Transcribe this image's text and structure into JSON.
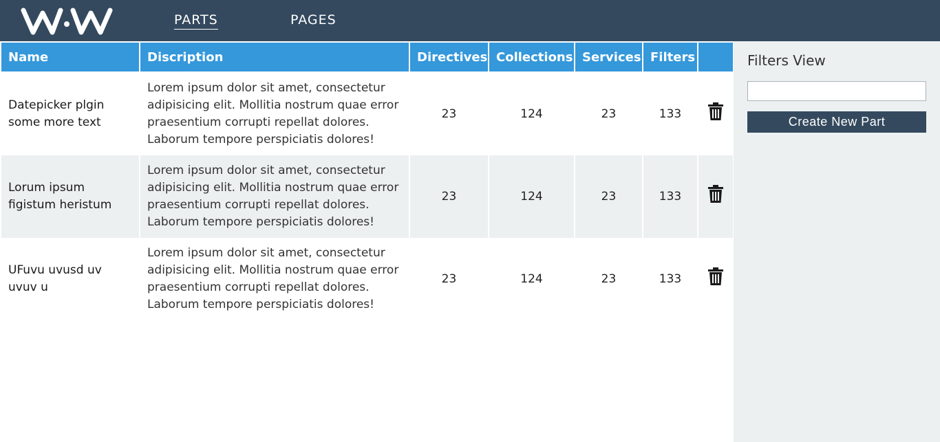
{
  "nav": {
    "logo_text": "WAW",
    "items": [
      {
        "label": "PARTS",
        "active": true
      },
      {
        "label": "PAGES",
        "active": false
      }
    ]
  },
  "table": {
    "headers": [
      "Name",
      "Discription",
      "Directives",
      "Collections",
      "Services",
      "Filters",
      ""
    ],
    "rows": [
      {
        "name": "Datepicker plgin some more text",
        "description": "Lorem ipsum dolor sit amet, consectetur adipisicing elit. Mollitia nostrum quae error praesentium corrupti repellat dolores. Laborum tempore perspiciatis dolores!",
        "directives": "23",
        "collections": "124",
        "services": "23",
        "filters": "133"
      },
      {
        "name": "Lorum ipsum figistum heristum",
        "description": "Lorem ipsum dolor sit amet, consectetur adipisicing elit. Mollitia nostrum quae error praesentium corrupti repellat dolores. Laborum tempore perspiciatis dolores!",
        "directives": "23",
        "collections": "124",
        "services": "23",
        "filters": "133"
      },
      {
        "name": "UFuvu uvusd uv uvuv u",
        "description": "Lorem ipsum dolor sit amet, consectetur adipisicing elit. Mollitia nostrum quae error praesentium corrupti repellat dolores. Laborum tempore perspiciatis dolores!",
        "directives": "23",
        "collections": "124",
        "services": "23",
        "filters": "133"
      }
    ],
    "row_action_icon": "trash-icon"
  },
  "sidebar": {
    "title": "Filters View",
    "filter_input": {
      "value": "",
      "placeholder": ""
    },
    "create_button_label": "Create New Part"
  },
  "colors": {
    "topbar": "#34495e",
    "header": "#3498db",
    "stripe": "#ecf0f1",
    "button": "#34495e"
  }
}
